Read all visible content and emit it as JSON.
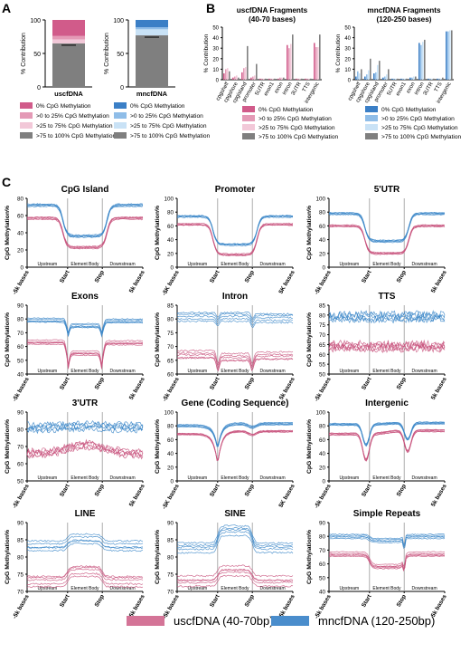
{
  "panel_labels": {
    "a": "A",
    "b": "B",
    "c": "C"
  },
  "colors": {
    "pink_0": "#d15b8a",
    "pink_1": "#e49ab6",
    "pink_2": "#f2c8d8",
    "blue_0": "#3b7fc6",
    "blue_1": "#8fbde8",
    "blue_2": "#c9e2f6",
    "gray_bar": "#7f7f7f",
    "gray_light": "#bdbdbd",
    "gray_dark": "#5a5a5a",
    "pink_line": "#c8527d",
    "blue_line": "#3a86c8"
  },
  "chart_data": [
    {
      "id": "A1",
      "type": "bar",
      "subtype": "stacked",
      "categories": [
        "uscfDNA"
      ],
      "ylabel": "% Contribution",
      "ylim": [
        0,
        100
      ],
      "yticks": [
        0,
        50,
        100
      ],
      "series": [
        {
          "name": "0% CpG Methylation",
          "values": [
            24
          ]
        },
        {
          "name": ">0 to 25% CpG Methylation",
          "values": [
            5
          ]
        },
        {
          "name": ">25 to 75% CpG Methylation",
          "values": [
            6
          ]
        },
        {
          "name": ">75 to 100% CpG Methylation",
          "values": [
            65
          ]
        }
      ]
    },
    {
      "id": "A2",
      "type": "bar",
      "subtype": "stacked",
      "categories": [
        "mncfDNA"
      ],
      "ylabel": "% Contribution",
      "ylim": [
        0,
        100
      ],
      "yticks": [
        0,
        50,
        100
      ],
      "series": [
        {
          "name": "0% CpG Methylation",
          "values": [
            11
          ]
        },
        {
          "name": ">0 to 25% CpG Methylation",
          "values": [
            3
          ]
        },
        {
          "name": ">25 to 75% CpG Methylation",
          "values": [
            9
          ]
        },
        {
          "name": ">75 to 100% CpG Methylation",
          "values": [
            77
          ]
        }
      ]
    },
    {
      "id": "B1",
      "type": "bar",
      "subtype": "grouped",
      "title": "uscfDNA Fragments",
      "subtitle": "(40-70 bases)",
      "ylabel": "% Contribution",
      "ylim": [
        0,
        50
      ],
      "yticks": [
        0,
        10,
        20,
        30,
        40,
        50
      ],
      "categories": [
        "cpgshelf",
        "cpgshore",
        "cpgisland",
        "promoter",
        "5UTR",
        "exon1",
        "exon",
        "intron",
        "3UTR",
        "TTS",
        "intergenic"
      ],
      "series": [
        {
          "name": "0% CpG Methylation",
          "values": [
            6,
            2,
            7,
            2,
            1,
            1,
            1,
            33,
            1,
            1,
            35
          ]
        },
        {
          "name": ">0 to 25% CpG Methylation",
          "values": [
            10,
            3,
            11,
            3,
            1,
            1,
            2,
            30,
            1,
            1,
            31
          ]
        },
        {
          "name": ">25 to 75% CpG Methylation",
          "values": [
            11,
            4,
            12,
            4,
            1,
            1,
            2,
            34,
            1,
            1,
            31
          ]
        },
        {
          "name": ">75 to 100% CpG Methylation",
          "values": [
            8,
            2,
            32,
            15,
            1,
            1,
            2,
            43,
            1,
            1,
            43
          ]
        }
      ]
    },
    {
      "id": "B2",
      "type": "bar",
      "subtype": "grouped",
      "title": "mncfDNA Fragments",
      "subtitle": "(120-250 bases)",
      "ylabel": "% Contribution",
      "ylim": [
        0,
        50
      ],
      "yticks": [
        0,
        10,
        20,
        30,
        40,
        50
      ],
      "categories": [
        "cpgshelf",
        "cpgshore",
        "cpgisland",
        "promoter",
        "5UTR",
        "exon1",
        "exon",
        "intron",
        "3UTR",
        "TTS",
        "intergenic"
      ],
      "series": [
        {
          "name": "0% CpG Methylation",
          "values": [
            3,
            3,
            6,
            2,
            1,
            1,
            2,
            35,
            1,
            1,
            46
          ]
        },
        {
          "name": ">0 to 25% CpG Methylation",
          "values": [
            8,
            5,
            7,
            3,
            1,
            1,
            2,
            33,
            1,
            1,
            46
          ]
        },
        {
          "name": ">25 to 75% CpG Methylation",
          "values": [
            6,
            9,
            14,
            5,
            1,
            1,
            3,
            36,
            1,
            1,
            47
          ]
        },
        {
          "name": ">75 to 100% CpG Methylation",
          "values": [
            10,
            20,
            18,
            10,
            1,
            1,
            3,
            38,
            1,
            2,
            47
          ]
        }
      ]
    },
    {
      "id": "C1",
      "type": "line",
      "title": "CpG Island",
      "ylabel": "CpG Methylation%",
      "ylim": [
        0,
        80
      ],
      "yticks": [
        0,
        20,
        40,
        60,
        80
      ],
      "x_segments": [
        "Upstream",
        "Element Body",
        "Downstream"
      ],
      "x_ticks": [
        "-5k bases",
        "Start",
        "Stop",
        "5k bases"
      ],
      "shape": "dip",
      "uscfDNA_level": [
        57,
        23
      ],
      "mncfDNA_level": [
        72,
        36
      ],
      "noise": 0.8
    },
    {
      "id": "C2",
      "type": "line",
      "title": "Promoter",
      "ylabel": "CpG Methylation%",
      "ylim": [
        0,
        100
      ],
      "yticks": [
        0,
        20,
        40,
        60,
        80,
        100
      ],
      "x_segments": [
        "Upstream",
        "Element Body",
        "Downstream"
      ],
      "x_ticks": [
        "-5K bases",
        "Start",
        "Stop",
        "5K bases"
      ],
      "shape": "dip",
      "uscfDNA_level": [
        62,
        18
      ],
      "mncfDNA_level": [
        74,
        33
      ],
      "noise": 0.8
    },
    {
      "id": "C3",
      "type": "line",
      "title": "5'UTR",
      "ylabel": "CpG Methylation%",
      "ylim": [
        0,
        100
      ],
      "yticks": [
        0,
        20,
        40,
        60,
        80,
        100
      ],
      "x_segments": [
        "Upstream",
        "Element Body",
        "Downstream"
      ],
      "x_ticks": [
        "-5k bases",
        "Start",
        "Stop",
        "5k bases"
      ],
      "shape": "dip",
      "uscfDNA_level": [
        60,
        20
      ],
      "mncfDNA_level": [
        78,
        38
      ],
      "noise": 0.8
    },
    {
      "id": "C4",
      "type": "line",
      "title": "Exons",
      "ylabel": "CpG Methylation%",
      "ylim": [
        40,
        90
      ],
      "yticks": [
        40,
        50,
        60,
        70,
        80,
        90
      ],
      "x_segments": [
        "Upstream",
        "Element Body",
        "Downstream"
      ],
      "x_ticks": [
        "-5k bases",
        "Start",
        "Stop",
        "5k bases"
      ],
      "shape": "notch",
      "uscfDNA_level": [
        63,
        55,
        52
      ],
      "mncfDNA_level": [
        79,
        75,
        72
      ],
      "noise": 0.4
    },
    {
      "id": "C5",
      "type": "line",
      "title": "Intron",
      "ylabel": "CpG Methylation%",
      "ylim": [
        60,
        85
      ],
      "yticks": [
        60,
        65,
        70,
        75,
        80,
        85
      ],
      "x_segments": [
        "Upstream",
        "Element Body",
        "Downstream"
      ],
      "x_ticks": [
        "-5k bases",
        "Start",
        "Stop",
        "5k bases"
      ],
      "shape": "notch",
      "uscfDNA_level": [
        67,
        66,
        63
      ],
      "mncfDNA_level": [
        81,
        81,
        79
      ],
      "noise": 0.4
    },
    {
      "id": "C6",
      "type": "line",
      "title": "TTS",
      "ylabel": "CpG Methylation%",
      "ylim": [
        50,
        85
      ],
      "yticks": [
        50,
        55,
        60,
        65,
        70,
        75,
        80,
        85
      ],
      "x_segments": [
        "Upstream",
        "Element Body",
        "Downstream"
      ],
      "x_ticks": [
        "-5k bases",
        "Start",
        "Stop",
        "5k bases"
      ],
      "shape": "noisy",
      "uscfDNA_level": [
        64,
        64,
        64
      ],
      "mncfDNA_level": [
        79,
        79,
        79
      ],
      "noise": 2.2
    },
    {
      "id": "C7",
      "type": "line",
      "title": "3'UTR",
      "ylabel": "CpG Methylation%",
      "ylim": [
        50,
        90
      ],
      "yticks": [
        50,
        60,
        70,
        80,
        90
      ],
      "x_segments": [
        "Upstream",
        "Element Body",
        "Downstream"
      ],
      "x_ticks": [
        "-5k bases",
        "Start",
        "Stop",
        "5k bases"
      ],
      "shape": "noisy",
      "uscfDNA_level": [
        66,
        71,
        66
      ],
      "mncfDNA_level": [
        81,
        82,
        81
      ],
      "noise": 2.0
    },
    {
      "id": "C8",
      "type": "line",
      "title": "Gene (Coding Sequence)",
      "ylabel": "CpG Methylation%",
      "ylim": [
        0,
        100
      ],
      "yticks": [
        0,
        20,
        40,
        60,
        80,
        100
      ],
      "x_segments": [
        "Upstream",
        "Element Body",
        "Downstream"
      ],
      "x_ticks": [
        "-5K bases",
        "Start",
        "Stop",
        "5K bases"
      ],
      "shape": "vdip",
      "uscfDNA_level": [
        68,
        22,
        72
      ],
      "mncfDNA_level": [
        80,
        45,
        83
      ],
      "noise": 0.6
    },
    {
      "id": "C9",
      "type": "line",
      "title": "Intergenic",
      "ylabel": "CpG Methylation%",
      "ylim": [
        0,
        100
      ],
      "yticks": [
        0,
        20,
        40,
        60,
        80,
        100
      ],
      "x_segments": [
        "Upstream",
        "Element Body",
        "Downstream"
      ],
      "x_ticks": [
        "-5k bases",
        "Start",
        "Stop",
        "5k bases"
      ],
      "shape": "vdip2",
      "uscfDNA_level": [
        68,
        30,
        73
      ],
      "mncfDNA_level": [
        82,
        52,
        84
      ],
      "noise": 0.6
    },
    {
      "id": "C10",
      "type": "line",
      "title": "LINE",
      "ylabel": "CpG Methylation%",
      "ylim": [
        70,
        90
      ],
      "yticks": [
        70,
        75,
        80,
        85,
        90
      ],
      "x_segments": [
        "Upstream",
        "Element Body",
        "Downstream"
      ],
      "x_ticks": [
        "-5k bases",
        "Start",
        "Stop",
        "5k bases"
      ],
      "shape": "bump",
      "uscfDNA_level": [
        73,
        76
      ],
      "mncfDNA_level": [
        83,
        85
      ],
      "noise": 0.3
    },
    {
      "id": "C11",
      "type": "line",
      "title": "SINE",
      "ylabel": "CpG Methylation%",
      "ylim": [
        70,
        90
      ],
      "yticks": [
        70,
        75,
        80,
        85,
        90
      ],
      "x_segments": [
        "Upstream",
        "Element Body",
        "Downstream"
      ],
      "x_ticks": [
        "-5k bases",
        "Start",
        "Stop",
        "5k bases"
      ],
      "shape": "bump",
      "uscfDNA_level": [
        73,
        76
      ],
      "mncfDNA_level": [
        83,
        88
      ],
      "noise": 0.3
    },
    {
      "id": "C12",
      "type": "line",
      "title": "Simple Repeats",
      "ylabel": "CpG Methylation%",
      "ylim": [
        40,
        90
      ],
      "yticks": [
        40,
        50,
        60,
        70,
        80,
        90
      ],
      "x_segments": [
        "Upstream",
        "Element Body",
        "Downstream"
      ],
      "x_ticks": [
        "-5k bases",
        "Start",
        "Stop",
        "5k bases"
      ],
      "shape": "repeat",
      "uscfDNA_level": [
        67,
        58,
        67
      ],
      "mncfDNA_level": [
        80,
        77,
        80
      ],
      "noise": 0.4
    }
  ],
  "legend_a": {
    "entries": [
      "0% CpG Methylation",
      ">0 to 25% CpG Methylation",
      ">25 to 75% CpG Methylation",
      ">75 to 100% CpG Methylation"
    ]
  },
  "legend_c": {
    "uscf": "uscfDNA (40-70bp)",
    "mncf": "mncfDNA (120-250bp)"
  }
}
